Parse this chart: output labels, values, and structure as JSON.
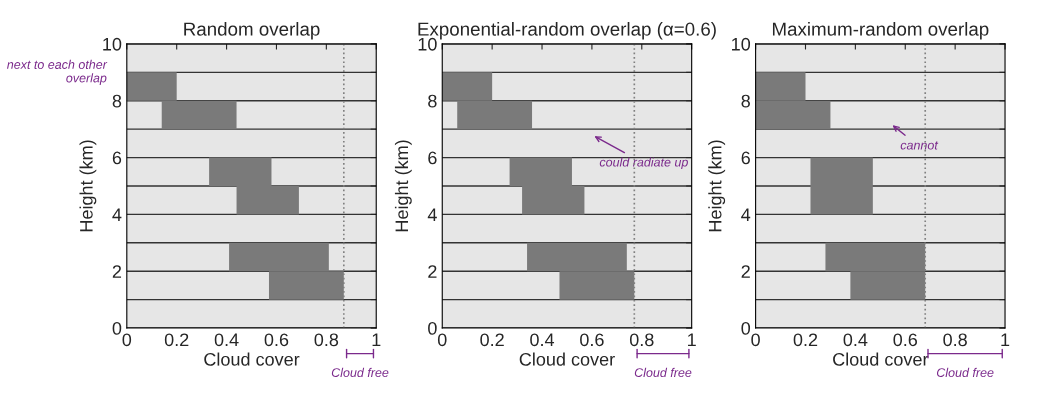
{
  "chart_data": [
    {
      "type": "bar",
      "orientation": "horizontal",
      "title": "Random overlap",
      "xlabel": "Cloud cover",
      "ylabel": "Height (km)",
      "x": [
        8.5,
        7.5,
        5.5,
        4.5,
        2.5,
        1.5
      ],
      "series": [
        {
          "color": "#7a7a7a",
          "base": [
            0,
            0.14,
            0.33,
            0.44,
            0.41,
            0.57
          ],
          "values": [
            0.2,
            0.3,
            0.25,
            0.25,
            0.4,
            0.3
          ]
        }
      ],
      "xlim": [
        0,
        1
      ],
      "xticks": [
        0,
        0.2,
        0.4,
        0.6,
        0.8,
        1
      ],
      "ylim": [
        0,
        10
      ],
      "yticks": [
        0,
        {
          "value": 1,
          "label": null
        },
        2,
        {
          "value": 3,
          "label": null
        },
        4,
        {
          "value": 5,
          "label": null
        },
        6,
        {
          "value": 7,
          "label": null
        },
        8,
        {
          "value": 9,
          "label": null
        },
        10
      ],
      "grid": "y",
      "ref_lines": [
        {
          "axis": "x",
          "value": 0.87,
          "color": "#808080",
          "line_style": "dotted"
        }
      ],
      "annotations": [
        "next to each other overlap",
        "Cloud free"
      ]
    },
    {
      "type": "bar",
      "orientation": "horizontal",
      "title": "Exponential-random overlap (α=0.6)",
      "xlabel": "Cloud cover",
      "ylabel": "Height (km)",
      "x": [
        8.5,
        7.5,
        5.5,
        4.5,
        2.5,
        1.5
      ],
      "series": [
        {
          "color": "#7a7a7a",
          "base": [
            0,
            0.06,
            0.27,
            0.32,
            0.34,
            0.47
          ],
          "values": [
            0.2,
            0.3,
            0.25,
            0.25,
            0.4,
            0.3
          ]
        }
      ],
      "xlim": [
        0,
        1
      ],
      "xticks": [
        0,
        0.2,
        0.4,
        0.6,
        0.8,
        1
      ],
      "ylim": [
        0,
        10
      ],
      "yticks": [
        0,
        {
          "value": 1,
          "label": null
        },
        2,
        {
          "value": 3,
          "label": null
        },
        4,
        {
          "value": 5,
          "label": null
        },
        6,
        {
          "value": 7,
          "label": null
        },
        8,
        {
          "value": 9,
          "label": null
        },
        10
      ],
      "grid": "y",
      "ref_lines": [
        {
          "axis": "x",
          "value": 0.77,
          "color": "#808080",
          "line_style": "dotted"
        }
      ],
      "annotations": [
        "could radiate up",
        "Cloud free"
      ]
    },
    {
      "type": "bar",
      "orientation": "horizontal",
      "title": "Maximum-random overlap",
      "xlabel": "Cloud cover",
      "ylabel": "Height (km)",
      "x": [
        8.5,
        7.5,
        5.5,
        4.5,
        2.5,
        1.5
      ],
      "series": [
        {
          "color": "#7a7a7a",
          "base": [
            0,
            0,
            0.22,
            0.22,
            0.28,
            0.38
          ],
          "values": [
            0.2,
            0.3,
            0.25,
            0.25,
            0.4,
            0.3
          ]
        }
      ],
      "xlim": [
        0,
        1
      ],
      "xticks": [
        0,
        0.2,
        0.4,
        0.6,
        0.8,
        1
      ],
      "ylim": [
        0,
        10
      ],
      "yticks": [
        0,
        {
          "value": 1,
          "label": null
        },
        2,
        {
          "value": 3,
          "label": null
        },
        4,
        {
          "value": 5,
          "label": null
        },
        6,
        {
          "value": 7,
          "label": null
        },
        8,
        {
          "value": 9,
          "label": null
        },
        10
      ],
      "grid": "y",
      "ref_lines": [
        {
          "axis": "x",
          "value": 0.68,
          "color": "#808080",
          "line_style": "dotted"
        }
      ],
      "annotations": [
        "cannot",
        "Cloud free"
      ]
    }
  ]
}
